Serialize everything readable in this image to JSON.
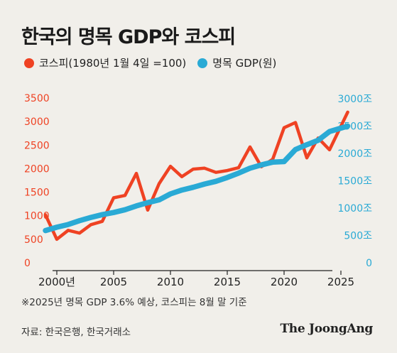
{
  "chart_data": {
    "type": "line",
    "title": "한국의 명목 GDP와 코스피",
    "x": [
      1999,
      2000,
      2001,
      2002,
      2003,
      2004,
      2005,
      2006,
      2007,
      2008,
      2009,
      2010,
      2011,
      2012,
      2013,
      2014,
      2015,
      2016,
      2017,
      2018,
      2019,
      2020,
      2021,
      2022,
      2023,
      2024,
      2025.6
    ],
    "x_ticks": [
      2000,
      2005,
      2010,
      2015,
      2020,
      2025
    ],
    "x_tick_labels": [
      "2000년",
      "2005",
      "2010",
      "2015",
      "2020",
      "2025"
    ],
    "xlim": [
      1997.5,
      2027.5
    ],
    "y_left": {
      "ticks": [
        0,
        500,
        1000,
        1500,
        2000,
        2500,
        3000,
        3500
      ],
      "tick_labels": [
        "0",
        "500",
        "1000",
        "1500",
        "2000",
        "2500",
        "3000",
        "3500"
      ],
      "lim": [
        0,
        3500
      ]
    },
    "y_right": {
      "ticks": [
        0,
        500,
        1000,
        1500,
        2000,
        2500,
        3000
      ],
      "tick_labels": [
        "0",
        "500조",
        "1000조",
        "1500조",
        "2000조",
        "2500조",
        "3000조"
      ],
      "lim": [
        0,
        3000
      ]
    },
    "series": [
      {
        "name": "코스피(1980년 1월 4일 =100)",
        "axis": "left",
        "color": "#ef4223",
        "values": [
          1020,
          500,
          690,
          630,
          810,
          880,
          1380,
          1430,
          1900,
          1120,
          1680,
          2050,
          1830,
          1990,
          2010,
          1920,
          1960,
          2020,
          2460,
          2040,
          2200,
          2870,
          2980,
          2230,
          2650,
          2400,
          3200
        ]
      },
      {
        "name": "명목 GDP(원)",
        "axis": "right",
        "color": "#2aaad5",
        "values": [
          590,
          650,
          700,
          770,
          830,
          880,
          920,
          970,
          1040,
          1100,
          1150,
          1260,
          1330,
          1380,
          1440,
          1490,
          1560,
          1640,
          1730,
          1790,
          1840,
          1850,
          2070,
          2160,
          2240,
          2400,
          2500
        ]
      }
    ],
    "grid": false
  },
  "legend": {
    "kospi": "코스피(1980년 1월 4일 =100)",
    "gdp": "명목 GDP(원)"
  },
  "note": "※2025년 명목 GDP 3.6% 예상, 코스피는 8월 말 기준",
  "source": "자료: 한국은행, 한국거래소",
  "brand": "The JoongAng"
}
